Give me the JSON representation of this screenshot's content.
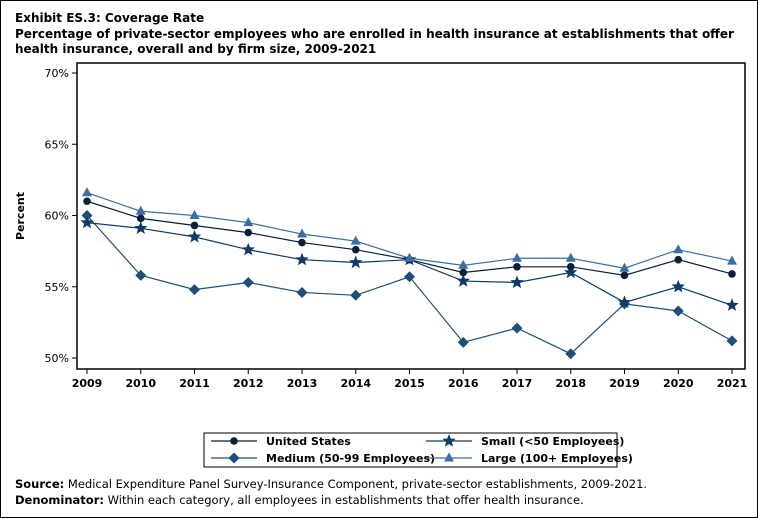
{
  "title": "Exhibit ES.3: Coverage Rate",
  "subtitle": "Percentage of private-sector employees who are enrolled in health insurance at establishments that offer health insurance, overall and by firm size, 2009-2021",
  "source_label": "Source:",
  "source_text": "Medical Expenditure Panel Survey-Insurance Component, private-sector establishments, 2009-2021.",
  "denominator_label": "Denominator:",
  "denominator_text": "Within each category, all employees in establishments that offer health insurance.",
  "chart_data": {
    "type": "line",
    "ylabel": "Percent",
    "xlabel": "",
    "ylim": [
      50,
      70
    ],
    "yticks": [
      "50%",
      "55%",
      "60%",
      "65%",
      "70%"
    ],
    "ytick_values": [
      50,
      55,
      60,
      65,
      70
    ],
    "categories": [
      "2009",
      "2010",
      "2011",
      "2012",
      "2013",
      "2014",
      "2015",
      "2016",
      "2017",
      "2018",
      "2019",
      "2020",
      "2021"
    ],
    "grid": false,
    "legend_placement": "bottom",
    "series": [
      {
        "name": "United States",
        "marker": "circle",
        "color": "#0b1f3a",
        "values": [
          61.0,
          59.8,
          59.3,
          58.8,
          58.1,
          57.6,
          56.9,
          56.0,
          56.4,
          56.4,
          55.8,
          56.9,
          55.9
        ]
      },
      {
        "name": "Small (<50 Employees)",
        "marker": "star",
        "color": "#0f3b66",
        "values": [
          59.5,
          59.1,
          58.5,
          57.6,
          56.9,
          56.7,
          56.9,
          55.4,
          55.3,
          56.0,
          53.9,
          55.0,
          53.7
        ]
      },
      {
        "name": "Medium (50-99 Employees)",
        "marker": "diamond",
        "color": "#1f4e79",
        "values": [
          60.0,
          55.8,
          54.8,
          55.3,
          54.6,
          54.4,
          55.7,
          51.1,
          52.1,
          50.3,
          53.8,
          53.3,
          51.2
        ]
      },
      {
        "name": "Large (100+ Employees)",
        "marker": "triangle",
        "color": "#3a6ea5",
        "values": [
          61.6,
          60.3,
          60.0,
          59.5,
          58.7,
          58.2,
          57.0,
          56.5,
          57.0,
          57.0,
          56.3,
          57.6,
          56.8
        ]
      }
    ]
  }
}
